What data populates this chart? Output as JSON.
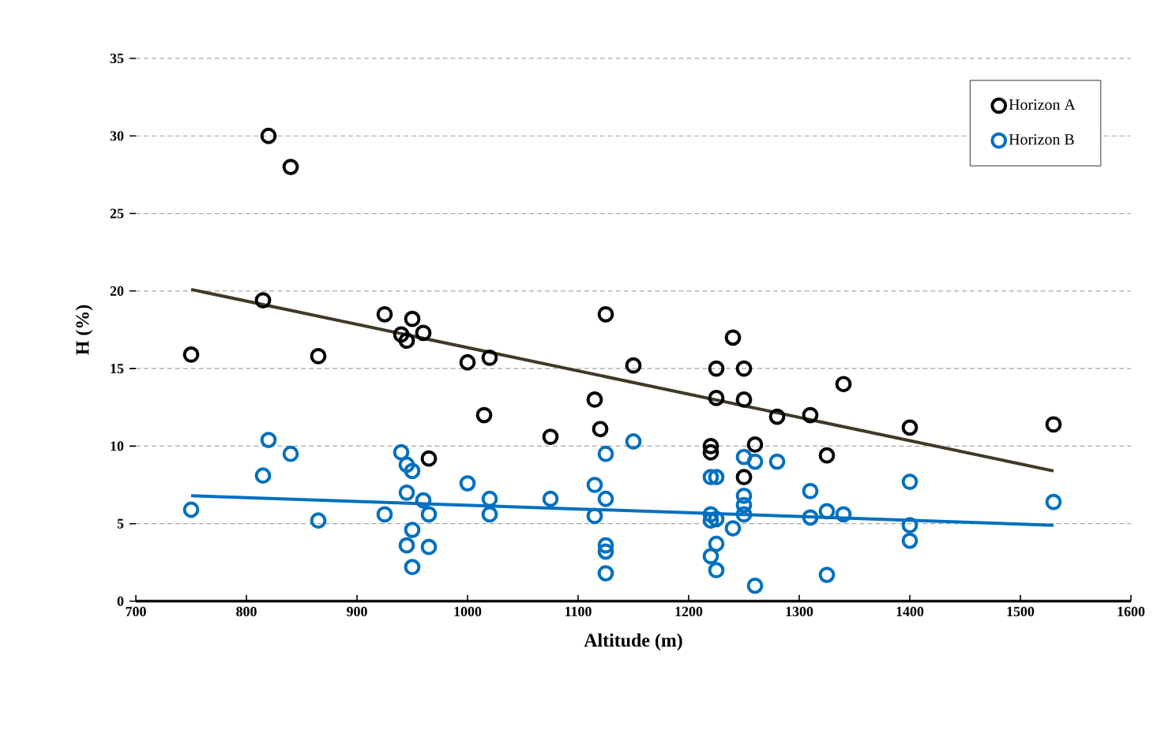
{
  "chart_data": {
    "type": "scatter",
    "xlabel": "Altitude (m)",
    "ylabel": "H (%)",
    "xlim": [
      700,
      1600
    ],
    "ylim": [
      0,
      35
    ],
    "xticks": [
      700,
      800,
      900,
      1000,
      1100,
      1200,
      1300,
      1400,
      1500,
      1600
    ],
    "yticks": [
      0,
      5,
      10,
      15,
      20,
      25,
      30,
      35
    ],
    "grid": "y",
    "legend": "top right",
    "marker": "circle",
    "series": [
      {
        "name": "Horizon A",
        "color": "#000000",
        "x": [
          750,
          815,
          820,
          840,
          865,
          925,
          940,
          945,
          950,
          960,
          965,
          1000,
          1015,
          1020,
          1075,
          1115,
          1120,
          1125,
          1150,
          1220,
          1220,
          1225,
          1225,
          1240,
          1250,
          1250,
          1250,
          1260,
          1280,
          1310,
          1325,
          1340,
          1400,
          1530
        ],
        "values": [
          15.9,
          19.4,
          30,
          28,
          15.8,
          18.5,
          17.2,
          16.8,
          18.2,
          17.3,
          9.2,
          15.4,
          12,
          15.7,
          10.6,
          13,
          11.1,
          18.5,
          15.2,
          10,
          9.6,
          15,
          13.1,
          17,
          15,
          13,
          8,
          10.1,
          11.9,
          12,
          9.4,
          14,
          11.2,
          11.4
        ]
      },
      {
        "name": "Horizon B",
        "color": "#0070c0",
        "x": [
          750,
          815,
          820,
          840,
          865,
          925,
          940,
          945,
          945,
          950,
          950,
          945,
          950,
          960,
          965,
          965,
          1000,
          1020,
          1020,
          1075,
          1115,
          1115,
          1125,
          1125,
          1125,
          1125,
          1125,
          1150,
          1220,
          1220,
          1220,
          1220,
          1225,
          1225,
          1225,
          1225,
          1240,
          1250,
          1250,
          1250,
          1250,
          1260,
          1260,
          1280,
          1310,
          1310,
          1325,
          1325,
          1340,
          1400,
          1400,
          1400,
          1530
        ],
        "values": [
          5.9,
          8.1,
          10.4,
          9.5,
          5.2,
          5.6,
          9.6,
          8.8,
          7,
          8.4,
          4.6,
          3.6,
          2.2,
          6.5,
          5.6,
          3.5,
          7.6,
          6.6,
          5.6,
          6.6,
          7.5,
          5.5,
          9.5,
          6.6,
          3.6,
          3.2,
          1.8,
          10.3,
          8,
          5.6,
          5.2,
          2.9,
          8,
          5.3,
          3.7,
          2,
          4.7,
          9.3,
          6.8,
          6.2,
          5.6,
          9,
          1,
          9,
          7.1,
          5.4,
          5.8,
          1.7,
          5.6,
          7.7,
          4.9,
          3.9,
          6.4
        ]
      },
      {
        "color": "#403a26",
        "type": "line",
        "marker": "none",
        "x": [
          750,
          1530
        ],
        "values": [
          20.1,
          8.4
        ]
      },
      {
        "color": "#0070c0",
        "type": "line",
        "marker": "none",
        "x": [
          750,
          1530
        ],
        "values": [
          6.8,
          4.9
        ]
      }
    ]
  }
}
